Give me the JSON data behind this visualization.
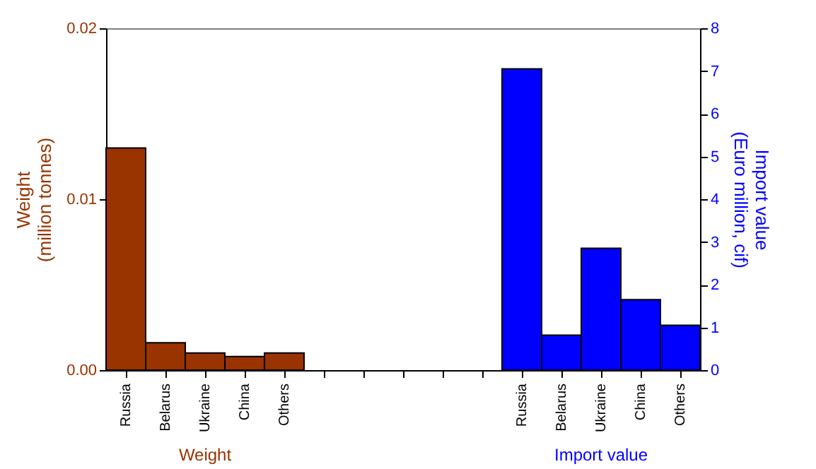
{
  "chart_data": {
    "type": "bar",
    "categories": [
      "Russia",
      "Belarus",
      "Ukraine",
      "China",
      "Others",
      null,
      null,
      null,
      null,
      null,
      "Russia",
      "Belarus",
      "Ukraine",
      "China",
      "Others"
    ],
    "ylabel": "Weight (million tonnes)",
    "y2label": "Import value (Euro million, cif)",
    "ylim": [
      0,
      0.02
    ],
    "yticks": [
      {
        "value": 0,
        "label": "0.00"
      },
      {
        "value": 0.01,
        "label": "0.01"
      },
      {
        "value": 0.02,
        "label": "0.02"
      }
    ],
    "y2lim": [
      0,
      8
    ],
    "y2ticks": [
      0,
      1,
      2,
      3,
      4,
      5,
      6,
      7,
      8
    ],
    "series": [
      {
        "color": "#993300",
        "values": [
          0.013,
          0.0016,
          0.001,
          0.0008,
          0.001,
          null,
          null,
          null,
          null,
          null,
          null,
          null,
          null,
          null,
          null
        ]
      },
      {
        "color": "#0000ff",
        "axis": "y2",
        "values": [
          null,
          null,
          null,
          null,
          null,
          null,
          null,
          null,
          null,
          null,
          7.05,
          0.82,
          2.85,
          1.65,
          1.05
        ]
      }
    ],
    "annotations": [
      "Weight",
      "Import value"
    ],
    "grid": false
  }
}
